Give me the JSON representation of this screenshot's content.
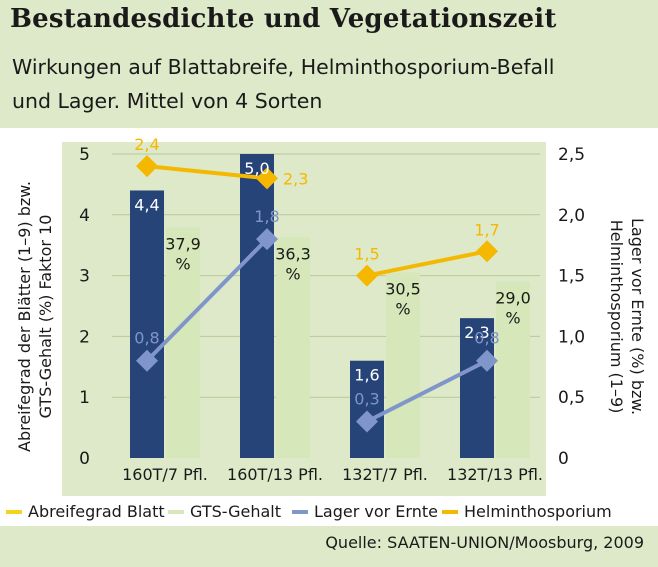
{
  "header": {
    "title": "Bestandesdichte und Vegetationszeit",
    "subtitle_line1": "Wirkungen auf Blattabreife, Helminthosporium-Befall",
    "subtitle_line2": "und Lager. Mittel von 4 Sorten"
  },
  "axes": {
    "left_label_line1": "Abreifegrad der Blätter (1–9) bzw.",
    "left_label_line2": "GTS-Gehalt (%) Faktor 10",
    "right_label_line1": "Lager vor Ernte (%) bzw.",
    "right_label_line2": "Helminthosporium (1–9)"
  },
  "source": "Quelle: SAATEN-UNION/Moosburg, 2009",
  "chart_data": {
    "type": "bar",
    "categories": [
      "160T/7 Pfl.",
      "160T/13 Pfl.",
      "132T/7 Pfl.",
      "132T/13 Pfl."
    ],
    "y_left": {
      "min": 0,
      "max": 5,
      "ticks": [
        "0",
        "1",
        "2",
        "3",
        "4",
        "5"
      ]
    },
    "y_right": {
      "min": 0,
      "max": 2.5,
      "ticks": [
        "0",
        "0,5",
        "1,0",
        "1,5",
        "2,0",
        "2,5"
      ]
    },
    "grid": true,
    "legend_position": "bottom",
    "series": [
      {
        "name": "Abreifegrad Blatt",
        "kind": "bar",
        "axis": "left",
        "color": "#264478",
        "legend_color": "#f5d21e",
        "values": [
          4.4,
          5.0,
          1.6,
          2.3
        ],
        "labels": [
          "4,4",
          "5,0",
          "1,6",
          "2,3"
        ]
      },
      {
        "name": "GTS-Gehalt",
        "kind": "bar",
        "axis": "left",
        "color": "#d6e8b9",
        "values": [
          3.79,
          3.63,
          3.05,
          2.9
        ],
        "labels": [
          "37,9 %",
          "36,3 %",
          "30,5 %",
          "29,0 %"
        ]
      },
      {
        "name": "Lager vor Ernte",
        "kind": "line",
        "axis": "right",
        "color": "#8095c9",
        "values": [
          0.8,
          1.8,
          0.3,
          0.8
        ],
        "labels": [
          "0,8",
          "1,8",
          "0,3",
          "0,8"
        ]
      },
      {
        "name": "Helminthosporium",
        "kind": "line",
        "axis": "right",
        "color": "#f5b800",
        "values": [
          2.4,
          2.3,
          1.5,
          1.7
        ],
        "labels": [
          "2,4",
          "2,3",
          "1,5",
          "1,7"
        ]
      }
    ]
  }
}
